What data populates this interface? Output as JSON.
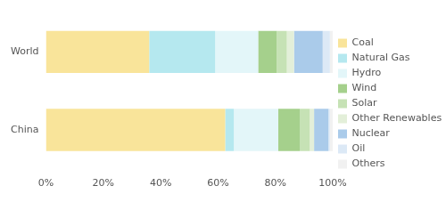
{
  "chart_data": {
    "type": "bar",
    "orientation": "horizontal",
    "stacked": true,
    "grid": false,
    "legend": "right",
    "categories": [
      "World",
      "China"
    ],
    "series": [
      {
        "name": "Coal",
        "color": "#f9e49a",
        "values": [
          36,
          62.5
        ]
      },
      {
        "name": "Natural Gas",
        "color": "#b5e8ef",
        "values": [
          23,
          3
        ]
      },
      {
        "name": "Hydro",
        "color": "#e3f6f9",
        "values": [
          15,
          15.5
        ]
      },
      {
        "name": "Wind",
        "color": "#a5d08c",
        "values": [
          6.5,
          7.5
        ]
      },
      {
        "name": "Solar",
        "color": "#c6e2b5",
        "values": [
          3.5,
          3.5
        ]
      },
      {
        "name": "Other Renewables",
        "color": "#e3efd9",
        "values": [
          2.5,
          1.5
        ]
      },
      {
        "name": "Nuclear",
        "color": "#aacbea",
        "values": [
          10,
          5
        ]
      },
      {
        "name": "Oil",
        "color": "#dce9f6",
        "values": [
          2.5,
          0.5
        ]
      },
      {
        "name": "Others",
        "color": "#f1f1f1",
        "values": [
          1,
          1
        ]
      }
    ],
    "xlim": [
      0,
      100
    ],
    "xticks": [
      {
        "value": 0,
        "label": "0%"
      },
      {
        "value": 20,
        "label": "20%"
      },
      {
        "value": 40,
        "label": "40%"
      },
      {
        "value": 60,
        "label": "60%"
      },
      {
        "value": 80,
        "label": "80%"
      },
      {
        "value": 100,
        "label": "100%"
      }
    ]
  }
}
